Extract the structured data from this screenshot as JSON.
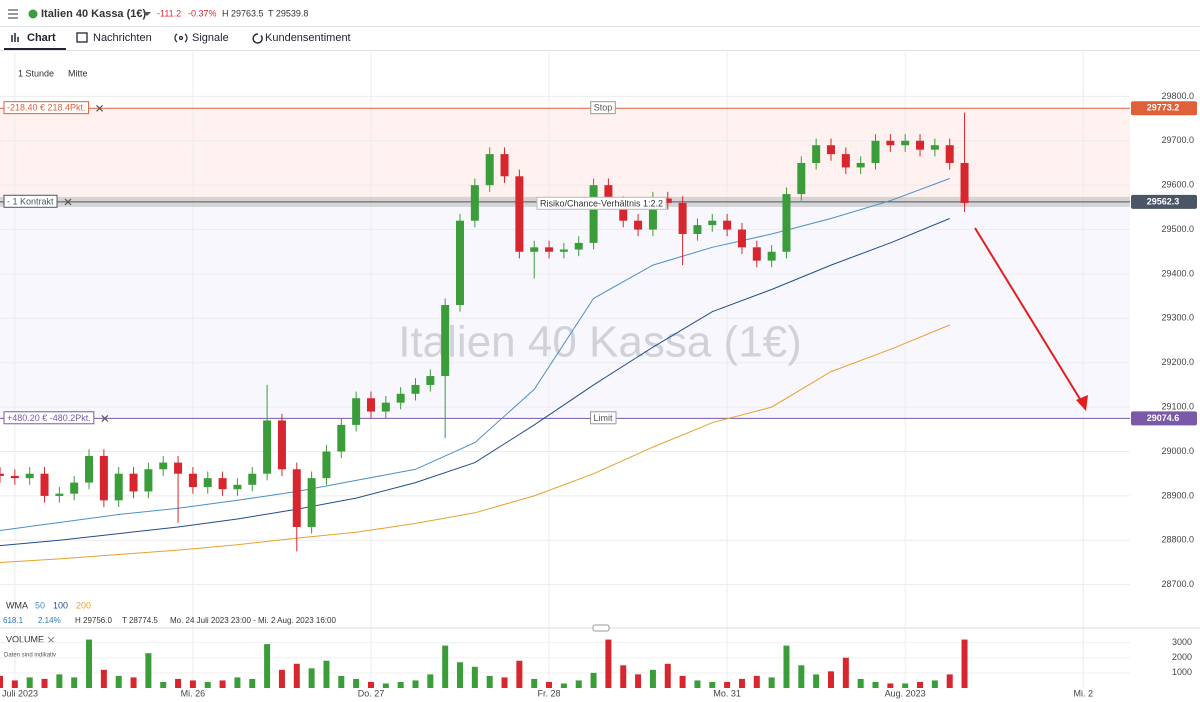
{
  "header": {
    "instrument": "Italien 40 Kassa (1€)",
    "change": "-111.2",
    "change_pct": "-0.37%",
    "high": "H 29763.5",
    "low": "T 29539.8"
  },
  "tabs": [
    "Chart",
    "Nachrichten",
    "Signale",
    "Kundensentiment"
  ],
  "toolbar": [
    "1 Stunde",
    "Mitte"
  ],
  "chart_data": {
    "type": "candlestick",
    "watermark": "Italien 40 Kassa (1€)",
    "x": [
      -26,
      -24,
      -22,
      -20,
      -18,
      -16,
      -14,
      -12,
      -10,
      -8,
      -6,
      -4,
      -2,
      0,
      2,
      4,
      6,
      8,
      10,
      12,
      14,
      16,
      18,
      20,
      22,
      24,
      26,
      28,
      30,
      32,
      34,
      36,
      38,
      40,
      42,
      44,
      46,
      48,
      50,
      52,
      54,
      56,
      58,
      60,
      62,
      64,
      66,
      68,
      70,
      72,
      74,
      76,
      78,
      80,
      82,
      84,
      86,
      88,
      90,
      92,
      94,
      96,
      98,
      100,
      102,
      104
    ],
    "open": [
      28950,
      28945,
      28940,
      28950,
      28900,
      28905,
      28930,
      28990,
      28890,
      28950,
      28910,
      28960,
      28975,
      28950,
      28920,
      28940,
      28915,
      28925,
      28950,
      29070,
      28960,
      28830,
      28940,
      29000,
      29060,
      29120,
      29090,
      29110,
      29130,
      29150,
      29170,
      29330,
      29520,
      29600,
      29670,
      29620,
      29450,
      29460,
      29450,
      29455,
      29470,
      29600,
      29560,
      29520,
      29500,
      29570,
      29560,
      29490,
      29510,
      29520,
      29500,
      29460,
      29430,
      29450,
      29580,
      29650,
      29690,
      29670,
      29640,
      29650,
      29700,
      29690,
      29700,
      29680,
      29690,
      29650
    ],
    "high": [
      28965,
      28960,
      28965,
      28965,
      28920,
      28945,
      29005,
      29005,
      28965,
      28965,
      28975,
      28990,
      28990,
      28965,
      28955,
      28955,
      28940,
      28965,
      29150,
      29085,
      28975,
      28955,
      29015,
      29075,
      29135,
      29135,
      29125,
      29145,
      29165,
      29185,
      29345,
      29535,
      29615,
      29685,
      29685,
      29635,
      29475,
      29475,
      29470,
      29485,
      29615,
      29615,
      29575,
      29535,
      29585,
      29585,
      29575,
      29525,
      29535,
      29535,
      29515,
      29475,
      29465,
      29595,
      29665,
      29705,
      29705,
      29685,
      29665,
      29715,
      29715,
      29715,
      29715,
      29705,
      29705,
      29763.5
    ],
    "low": [
      28930,
      28925,
      28925,
      28885,
      28885,
      28890,
      28915,
      28875,
      28875,
      28895,
      28895,
      28945,
      28840,
      28905,
      28905,
      28900,
      28900,
      28910,
      28935,
      28945,
      28775,
      28815,
      28925,
      28985,
      29045,
      29075,
      29075,
      29095,
      29115,
      29135,
      29030,
      29315,
      29505,
      29585,
      29605,
      29435,
      29390,
      29435,
      29435,
      29440,
      29455,
      29545,
      29505,
      29485,
      29485,
      29545,
      29420,
      29475,
      29495,
      29485,
      29445,
      29415,
      29415,
      29435,
      29565,
      29635,
      29655,
      29625,
      29625,
      29635,
      29675,
      29675,
      29665,
      29665,
      29635,
      29539.8
    ],
    "close": [
      28945,
      28940,
      28950,
      28900,
      28905,
      28930,
      28990,
      28890,
      28950,
      28910,
      28960,
      28975,
      28950,
      28920,
      28940,
      28915,
      28925,
      28950,
      29070,
      28960,
      28830,
      28940,
      29000,
      29060,
      29120,
      29090,
      29110,
      29130,
      29150,
      29170,
      29330,
      29520,
      29600,
      29670,
      29620,
      29450,
      29460,
      29450,
      29455,
      29470,
      29600,
      29560,
      29520,
      29500,
      29570,
      29560,
      29490,
      29510,
      29520,
      29500,
      29460,
      29430,
      29450,
      29580,
      29650,
      29690,
      29670,
      29640,
      29650,
      29700,
      29690,
      29700,
      29680,
      29690,
      29650,
      29560
    ],
    "colors": {
      "up": "#3a9d3a",
      "down": "#d8262e"
    },
    "indicator": "WMA",
    "lines": [
      {
        "name": "50",
        "color": "#4a90c8",
        "x": [
          -26,
          -18,
          -10,
          -2,
          6,
          14,
          22,
          30,
          38,
          46,
          54,
          62,
          70,
          78,
          86,
          94,
          102
        ],
        "values": [
          28822,
          28840,
          28858,
          28872,
          28890,
          28910,
          28935,
          28960,
          29020,
          29140,
          29345,
          29420,
          29460,
          29490,
          29525,
          29565,
          29615
        ]
      },
      {
        "name": "100",
        "color": "#1f4e8c",
        "x": [
          -26,
          -18,
          -10,
          -2,
          6,
          14,
          22,
          30,
          38,
          46,
          54,
          62,
          70,
          78,
          86,
          94,
          102
        ],
        "values": [
          28788,
          28800,
          28815,
          28830,
          28848,
          28870,
          28895,
          28930,
          28975,
          29060,
          29150,
          29235,
          29315,
          29365,
          29420,
          29470,
          29525
        ]
      },
      {
        "name": "200",
        "color": "#e8a030",
        "x": [
          -26,
          -18,
          -10,
          -2,
          6,
          14,
          22,
          30,
          38,
          46,
          54,
          62,
          70,
          78,
          86,
          94,
          102
        ],
        "values": [
          28750,
          28758,
          28768,
          28778,
          28790,
          28805,
          28818,
          28838,
          28862,
          28900,
          28950,
          29010,
          29065,
          29100,
          29180,
          29230,
          29285
        ]
      }
    ],
    "stats": [
      "618.1",
      "2.14%",
      "H 29756.0",
      "T 28774.5",
      "Mo. 24 Juli 2023 23:00 - Mi. 2 Aug. 2023 16:00"
    ],
    "levels": [
      {
        "name": "Stop",
        "value": 29773.2,
        "info": "-218.40 € 218.4Pkt.",
        "color": "#e0603a"
      },
      {
        "value": 29562.3,
        "info": "- 1 Kontrakt",
        "color": "#4a5566"
      },
      {
        "name": "Limit",
        "value": 29074.6,
        "info": "+480.20 € -480.2Pkt.",
        "color": "#7a5aa8"
      }
    ],
    "annotation": "Risiko/Chance-Verhältnis 1:2.2",
    "xlim": [
      -26,
      126.3
    ],
    "xticks": [
      {
        "value": -24,
        "label": "Juli 2023"
      },
      {
        "value": 0,
        "label": "Mi. 26"
      },
      {
        "value": 24,
        "label": "Do. 27"
      },
      {
        "value": 48,
        "label": "Fr. 28"
      },
      {
        "value": 72,
        "label": "Mo. 31"
      },
      {
        "value": 96,
        "label": "Aug. 2023"
      },
      {
        "value": 120,
        "label": "Mi. 2"
      }
    ],
    "ylim": [
      28670,
      29900
    ],
    "yticks": [
      {
        "value": 28700,
        "label": "28700.0"
      },
      {
        "value": 28800,
        "label": "28800.0"
      },
      {
        "value": 28900,
        "label": "28900.0"
      },
      {
        "value": 29000,
        "label": "29000.0"
      },
      {
        "value": 29100,
        "label": "29100.0"
      },
      {
        "value": 29200,
        "label": "29200.0"
      },
      {
        "value": 29300,
        "label": "29300.0"
      },
      {
        "value": 29400,
        "label": "29400.0"
      },
      {
        "value": 29500,
        "label": "29500.0"
      },
      {
        "value": 29600,
        "label": "29600.0"
      },
      {
        "value": 29700,
        "label": "29700.0"
      },
      {
        "value": 29800,
        "label": "29800.0"
      }
    ],
    "grid": true,
    "volume": {
      "label": "VOLUME",
      "note": "Daten sind indikativ",
      "ylim": [
        0,
        3700
      ],
      "yticks": [
        1000,
        2000,
        3000
      ],
      "values": [
        800,
        500,
        700,
        600,
        900,
        700,
        3200,
        1200,
        800,
        700,
        2300,
        400,
        600,
        500,
        400,
        500,
        700,
        600,
        2900,
        1200,
        1600,
        1300,
        1800,
        800,
        600,
        400,
        300,
        400,
        500,
        900,
        2800,
        1700,
        1400,
        800,
        700,
        1800,
        600,
        400,
        300,
        500,
        1000,
        3200,
        1500,
        900,
        1200,
        1600,
        800,
        500,
        400,
        400,
        600,
        800,
        700,
        2800,
        1500,
        900,
        1100,
        2000,
        600,
        400,
        300,
        300,
        400,
        500,
        900,
        3200
      ]
    }
  }
}
